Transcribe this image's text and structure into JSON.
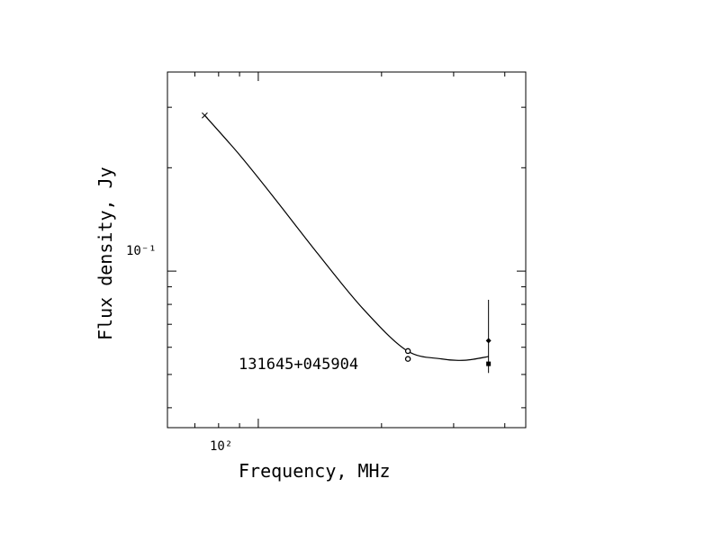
{
  "chart_data": {
    "type": "scatter",
    "title": "",
    "annotation": "131645+045904",
    "xlabel": "Frequency, MHz",
    "ylabel": "Flux density, Jy",
    "xscale": "log",
    "yscale": "log",
    "xlim": [
      60,
      450
    ],
    "ylim": [
      0.035,
      0.38
    ],
    "x_tick_label": "10²",
    "y_tick_label": "10⁻¹",
    "grid": false,
    "points": [
      {
        "x": 74,
        "y": 0.284,
        "marker": "x"
      },
      {
        "x": 232,
        "y": 0.0585,
        "marker": "o"
      },
      {
        "x": 232,
        "y": 0.0555,
        "marker": "o"
      },
      {
        "x": 365,
        "y": 0.0627,
        "marker": "diamond",
        "yerr_low": 0.0505,
        "yerr_high": 0.0825
      },
      {
        "x": 365,
        "y": 0.0537,
        "marker": "square"
      }
    ],
    "fit_curve": {
      "x": [
        74,
        90,
        110,
        140,
        180,
        230,
        280,
        320,
        365
      ],
      "y": [
        0.284,
        0.218,
        0.162,
        0.112,
        0.0778,
        0.0588,
        0.0555,
        0.055,
        0.0564
      ]
    }
  }
}
